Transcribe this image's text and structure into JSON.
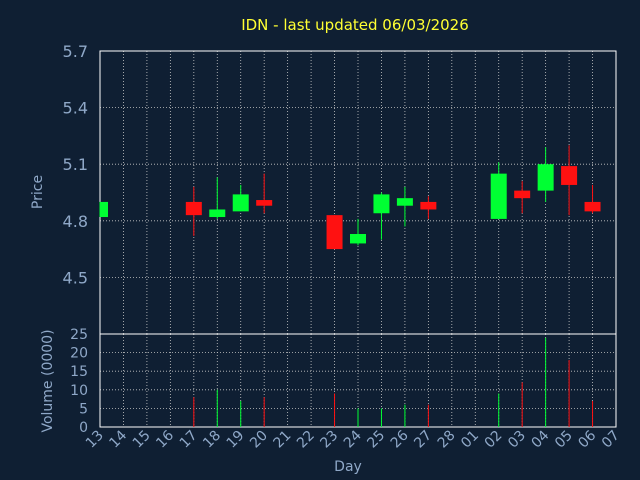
{
  "chart_data": [
    {
      "type": "candlestick",
      "title": "IDN - last updated 06/03/2026",
      "ylabel": "Price",
      "ylim": [
        4.2,
        5.7
      ],
      "yticks": [
        "5.7",
        "5.4",
        "5.1",
        "4.8",
        "4.5"
      ],
      "ytick_values": [
        5.7,
        5.4,
        5.1,
        4.8,
        4.5
      ],
      "grid": true,
      "colors": {
        "up": "#00ff33",
        "down": "#ff1111",
        "grid": "#c8c8c8",
        "frame": "#ffffff",
        "plot_bg": "#0f1f33"
      },
      "categories": [
        "13",
        "14",
        "15",
        "16",
        "17",
        "18",
        "19",
        "20",
        "21",
        "22",
        "23",
        "24",
        "25",
        "26",
        "27",
        "28",
        "01",
        "02",
        "03",
        "04",
        "05",
        "06",
        "07"
      ],
      "candles": [
        {
          "x": "13",
          "open": 4.82,
          "high": 4.9,
          "low": 4.82,
          "close": 4.9
        },
        {
          "x": "17",
          "open": 4.9,
          "high": 4.98,
          "low": 4.72,
          "close": 4.83
        },
        {
          "x": "18",
          "open": 4.82,
          "high": 5.03,
          "low": 4.81,
          "close": 4.86
        },
        {
          "x": "19",
          "open": 4.85,
          "high": 4.99,
          "low": 4.85,
          "close": 4.94
        },
        {
          "x": "20",
          "open": 4.91,
          "high": 5.05,
          "low": 4.84,
          "close": 4.88
        },
        {
          "x": "23",
          "open": 4.83,
          "high": 4.83,
          "low": 4.65,
          "close": 4.65
        },
        {
          "x": "24",
          "open": 4.68,
          "high": 4.81,
          "low": 4.67,
          "close": 4.73
        },
        {
          "x": "25",
          "open": 4.84,
          "high": 4.95,
          "low": 4.7,
          "close": 4.94
        },
        {
          "x": "26",
          "open": 4.88,
          "high": 4.98,
          "low": 4.77,
          "close": 4.92
        },
        {
          "x": "27",
          "open": 4.9,
          "high": 4.93,
          "low": 4.81,
          "close": 4.86
        },
        {
          "x": "02",
          "open": 4.81,
          "high": 5.11,
          "low": 4.81,
          "close": 5.05
        },
        {
          "x": "03",
          "open": 4.96,
          "high": 5.01,
          "low": 4.84,
          "close": 4.92
        },
        {
          "x": "04",
          "open": 4.96,
          "high": 5.19,
          "low": 4.9,
          "close": 5.1
        },
        {
          "x": "05",
          "open": 5.09,
          "high": 5.2,
          "low": 4.83,
          "close": 4.99
        },
        {
          "x": "06",
          "open": 4.9,
          "high": 4.99,
          "low": 4.84,
          "close": 4.85
        }
      ]
    },
    {
      "type": "bar",
      "ylabel": "Volume (0000)",
      "xlabel": "Day",
      "ylim": [
        0,
        25
      ],
      "yticks": [
        "25",
        "20",
        "15",
        "10",
        "5",
        "0"
      ],
      "ytick_values": [
        25,
        20,
        15,
        10,
        5,
        0
      ],
      "categories": [
        "13",
        "14",
        "15",
        "16",
        "17",
        "18",
        "19",
        "20",
        "21",
        "22",
        "23",
        "24",
        "25",
        "26",
        "27",
        "28",
        "01",
        "02",
        "03",
        "04",
        "05",
        "06",
        "07"
      ],
      "bars": [
        {
          "x": "17",
          "value": 8,
          "direction": "down"
        },
        {
          "x": "18",
          "value": 10,
          "direction": "up"
        },
        {
          "x": "19",
          "value": 7,
          "direction": "up"
        },
        {
          "x": "20",
          "value": 8,
          "direction": "down"
        },
        {
          "x": "23",
          "value": 9,
          "direction": "down"
        },
        {
          "x": "24",
          "value": 5,
          "direction": "up"
        },
        {
          "x": "25",
          "value": 5,
          "direction": "up"
        },
        {
          "x": "26",
          "value": 6,
          "direction": "up"
        },
        {
          "x": "27",
          "value": 6,
          "direction": "down"
        },
        {
          "x": "02",
          "value": 9,
          "direction": "up"
        },
        {
          "x": "03",
          "value": 12,
          "direction": "down"
        },
        {
          "x": "04",
          "value": 24,
          "direction": "up"
        },
        {
          "x": "05",
          "value": 18,
          "direction": "down"
        },
        {
          "x": "06",
          "value": 7,
          "direction": "down"
        }
      ]
    }
  ]
}
